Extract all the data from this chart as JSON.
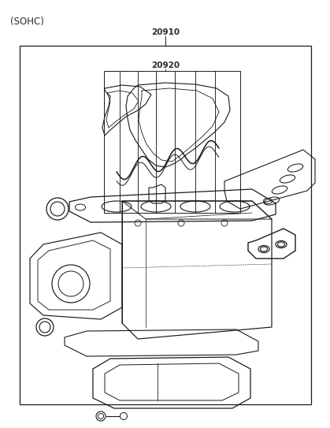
{
  "title_label": "(SOHC)",
  "part_number_outer": "20910",
  "part_number_inner": "20920",
  "bg_color": "#ffffff",
  "line_color": "#1a1a1a",
  "text_color": "#2a2a2a",
  "figsize": [
    4.19,
    5.43
  ],
  "dpi": 100
}
